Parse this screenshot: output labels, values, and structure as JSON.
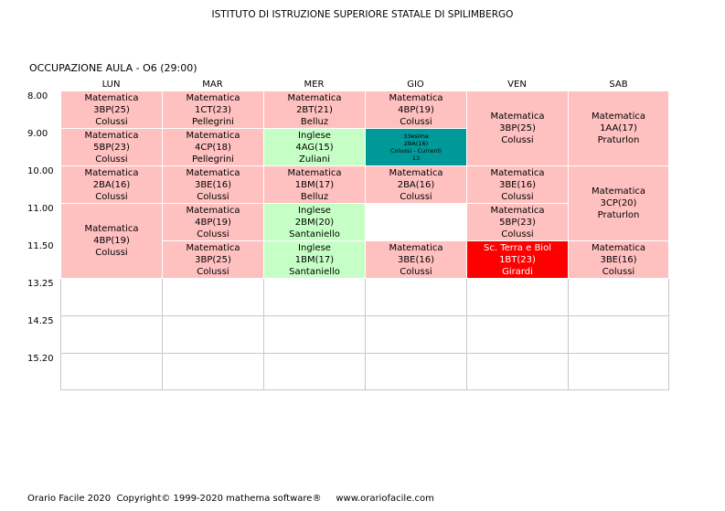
{
  "header": {
    "school": "ISTITUTO DI ISTRUZIONE SUPERIORE STATALE DI SPILIMBERGO",
    "room": "OCCUPAZIONE AULA   -   O6  (29:00)"
  },
  "days": [
    "LUN",
    "MAR",
    "MER",
    "GIO",
    "VEN",
    "SAB"
  ],
  "times": [
    "8.00",
    "9.00",
    "10.00",
    "11.00",
    "11.50",
    "13.25",
    "14.25",
    "15.20"
  ],
  "lessons": {
    "lun_1": {
      "subject": "Matematica",
      "cls": "3BP(25)",
      "teacher": "Colussi"
    },
    "lun_2": {
      "subject": "Matematica",
      "cls": "5BP(23)",
      "teacher": "Colussi"
    },
    "lun_3": {
      "subject": "Matematica",
      "cls": "2BA(16)",
      "teacher": "Colussi"
    },
    "lun_45": {
      "subject": "Matematica",
      "cls": "4BP(19)",
      "teacher": "Colussi"
    },
    "mar_1": {
      "subject": "Matematica",
      "cls": "1CT(23)",
      "teacher": "Pellegrini"
    },
    "mar_2": {
      "subject": "Matematica",
      "cls": "4CP(18)",
      "teacher": "Pellegrini"
    },
    "mar_3": {
      "subject": "Matematica",
      "cls": "3BE(16)",
      "teacher": "Colussi"
    },
    "mar_4": {
      "subject": "Matematica",
      "cls": "4BP(19)",
      "teacher": "Colussi"
    },
    "mar_5": {
      "subject": "Matematica",
      "cls": "3BP(25)",
      "teacher": "Colussi"
    },
    "mer_1": {
      "subject": "Matematica",
      "cls": "2BT(21)",
      "teacher": "Belluz"
    },
    "mer_2": {
      "subject": "Inglese",
      "cls": "4AG(15)",
      "teacher": "Zuliani"
    },
    "mer_3": {
      "subject": "Matematica",
      "cls": "1BM(17)",
      "teacher": "Belluz"
    },
    "mer_4": {
      "subject": "Inglese",
      "cls": "2BM(20)",
      "teacher": "Santaniello"
    },
    "mer_5": {
      "subject": "Inglese",
      "cls": "1BM(17)",
      "teacher": "Santaniello"
    },
    "gio_1": {
      "subject": "Matematica",
      "cls": "4BP(19)",
      "teacher": "Colussi"
    },
    "gio_2": {
      "subject": "33esima",
      "cls": "2BA(16)",
      "teacher": "Colussi - Currenti",
      "extra": "13"
    },
    "gio_3": {
      "subject": "Matematica",
      "cls": "2BA(16)",
      "teacher": "Colussi"
    },
    "gio_5": {
      "subject": "Matematica",
      "cls": "3BE(16)",
      "teacher": "Colussi"
    },
    "ven_12": {
      "subject": "Matematica",
      "cls": "3BP(25)",
      "teacher": "Colussi"
    },
    "ven_3": {
      "subject": "Matematica",
      "cls": "3BE(16)",
      "teacher": "Colussi"
    },
    "ven_4": {
      "subject": "Matematica",
      "cls": "5BP(23)",
      "teacher": "Colussi"
    },
    "ven_5": {
      "subject": "Sc. Terra e Biol",
      "cls": "1BT(23)",
      "teacher": "Girardi"
    },
    "sab_12": {
      "subject": "Matematica",
      "cls": "1AA(17)",
      "teacher": "Praturlon"
    },
    "sab_34": {
      "subject": "Matematica",
      "cls": "3CP(20)",
      "teacher": "Praturlon"
    },
    "sab_5": {
      "subject": "Matematica",
      "cls": "3BE(16)",
      "teacher": "Colussi"
    }
  },
  "colors": {
    "lesson": "#ffc0c0",
    "inglese": "#c6ffc6",
    "special": "#009999",
    "highlight": "#ff0000"
  },
  "footer": "Orario Facile 2020  Copyright© 1999-2020 mathema software®     www.orariofacile.com"
}
